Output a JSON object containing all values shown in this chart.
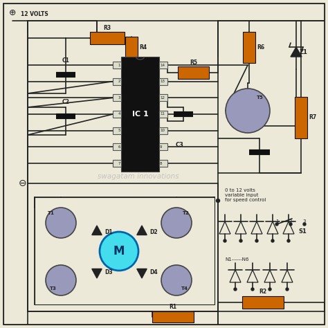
{
  "bg_color": "#ece9d8",
  "line_color": "#222222",
  "resistor_color": "#cc6600",
  "ic_color": "#111111",
  "transistor_color": "#9999bb",
  "capacitor_color": "#111111",
  "motor_color": "#44ddee",
  "watermark": "swagatam innovations",
  "volts_label": "12 VOLTS",
  "ic_label": "IC 1",
  "speed_label": "0 to 12 volts\nvariable input\nfor speed control",
  "switch_label": "S1",
  "node_label": "N1------N6"
}
